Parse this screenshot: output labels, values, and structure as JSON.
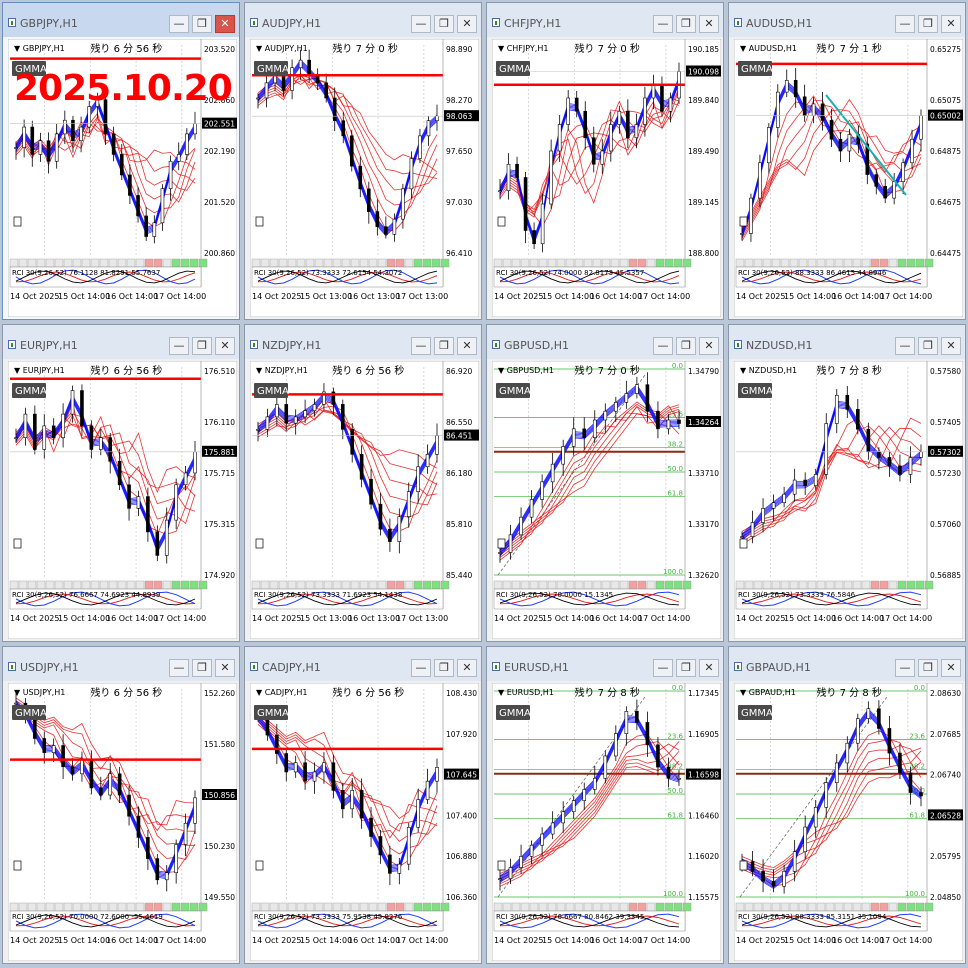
{
  "date_stamp": "2025.10.20",
  "colors": {
    "bull": "#0000ff",
    "red_band": "#e01010",
    "level_line": "#ff0000",
    "price_box": "#000000",
    "osc_blue": "#1f3cff",
    "osc_red": "#e31b1b",
    "fibo": "#3cb43c",
    "fibo_label": "#3cb43c",
    "hline": "#8b2a10",
    "gmma_box": "#4a4a4a",
    "trend_cyan": "#1ab0b0",
    "btn_buy": "#7fe07f",
    "btn_sell": "#7fe07f",
    "btn_red": "#f2a0a0"
  },
  "chart_data": [
    {
      "symbol": "GBPJPY,H1",
      "header": "GBPJPY,H1",
      "countdown": "残り 6 分 56 秒",
      "indicator": "GMMA",
      "yticks": [
        "203.520",
        "202.860",
        "202.190",
        "201.520",
        "200.860"
      ],
      "price": "202.551",
      "xlabels": [
        "14 Oct 2025",
        "15 Oct 14:00",
        "16 Oct 14:00",
        "17 Oct 14:00"
      ],
      "osc_label": "RCI 30(9,26,52) 76.1128 81.8291 55.7637",
      "ylim": [
        200.6,
        203.7
      ],
      "level": 203.5,
      "trend": "down-up",
      "closes": [
        202.2,
        202.5,
        202.1,
        202.3,
        202.0,
        202.4,
        202.6,
        202.3,
        202.5,
        202.8,
        202.9,
        202.4,
        202.1,
        201.8,
        201.5,
        201.2,
        200.9,
        201.1,
        201.6,
        202.0,
        202.1,
        202.4,
        202.55
      ]
    },
    {
      "symbol": "AUDJPY,H1",
      "header": "AUDJPY,H1",
      "countdown": "残り 7 分 0 秒",
      "indicator": "GMMA",
      "yticks": [
        "98.890",
        "98.270",
        "97.650",
        "97.030",
        "96.410"
      ],
      "price": "98.063",
      "xlabels": [
        "14 Oct 2025",
        "15 Oct 13:00",
        "16 Oct 13:00",
        "17 Oct 13:00"
      ],
      "osc_label": "RCI 30(9,26,52) 73.3333 72.6154 54.3072",
      "ylim": [
        96.2,
        99.0
      ],
      "level": 98.6,
      "trend": "down",
      "closes": [
        98.3,
        98.5,
        98.6,
        98.4,
        98.7,
        98.8,
        98.6,
        98.5,
        98.3,
        98.0,
        97.8,
        97.4,
        97.1,
        96.8,
        96.6,
        96.5,
        96.7,
        97.1,
        97.5,
        97.8,
        98.0,
        98.06
      ]
    },
    {
      "symbol": "CHFJPY,H1",
      "header": "CHFJPY,H1",
      "countdown": "残り 7 分 0 秒",
      "indicator": "GMMA",
      "yticks": [
        "190.185",
        "189.840",
        "189.490",
        "189.145",
        "188.800"
      ],
      "price": "190.098",
      "xlabels": [
        "14 Oct 2025",
        "15 Oct 14:00",
        "16 Oct 14:00",
        "17 Oct 14:00"
      ],
      "osc_label": "RCI 30(9,26,52) 74.0000 82.8173 45.5357",
      "ylim": [
        188.7,
        190.3
      ],
      "level": 190.0,
      "trend": "up",
      "closes": [
        189.2,
        189.4,
        189.3,
        188.9,
        188.8,
        189.1,
        189.5,
        189.7,
        189.9,
        189.8,
        189.6,
        189.4,
        189.5,
        189.7,
        189.8,
        189.6,
        189.7,
        189.9,
        190.0,
        189.8,
        189.9,
        190.1
      ]
    },
    {
      "symbol": "AUDUSD,H1",
      "header": "AUDUSD,H1",
      "countdown": "残り 7 分 1 秒",
      "indicator": "GMMA",
      "yticks": [
        "0.65275",
        "0.65075",
        "0.64875",
        "0.64675",
        "0.64475"
      ],
      "price": "0.65002",
      "xlabels": [
        "14 Oct 2025",
        "15 Oct 14:00",
        "16 Oct 14:00",
        "17 Oct 14:00"
      ],
      "osc_label": "RCI 30(9,26,52) 88.3333 86.4615 44.8946",
      "ylim": [
        0.644,
        0.653
      ],
      "level": 0.6522,
      "trend": "down",
      "closes": [
        0.645,
        0.6465,
        0.648,
        0.6495,
        0.651,
        0.6515,
        0.6508,
        0.65,
        0.6505,
        0.6498,
        0.649,
        0.6485,
        0.6492,
        0.6488,
        0.6475,
        0.647,
        0.6465,
        0.6472,
        0.648,
        0.649,
        0.65
      ]
    },
    {
      "symbol": "EURJPY,H1",
      "header": "EURJPY,H1",
      "countdown": "残り 6 分 56 秒",
      "indicator": "GMMA",
      "yticks": [
        "176.510",
        "176.110",
        "175.715",
        "175.315",
        "174.920"
      ],
      "price": "175.881",
      "xlabels": [
        "14 Oct 2025",
        "15 Oct 14:00",
        "16 Oct 14:00",
        "17 Oct 14:00"
      ],
      "osc_label": "RCI 30(9,26,52) 76.6667 74.6923 44.8939",
      "ylim": [
        174.8,
        176.6
      ],
      "level": 176.5,
      "trend": "down",
      "closes": [
        176.0,
        176.2,
        175.9,
        176.1,
        176.0,
        176.2,
        176.4,
        176.1,
        175.9,
        176.0,
        175.8,
        175.6,
        175.4,
        175.5,
        175.2,
        175.0,
        175.3,
        175.6,
        175.7,
        175.88
      ]
    },
    {
      "symbol": "NZDJPY,H1",
      "header": "NZDJPY,H1",
      "countdown": "残り 6 分 56 秒",
      "indicator": "GMMA",
      "yticks": [
        "86.920",
        "86.550",
        "86.180",
        "85.810",
        "85.440"
      ],
      "price": "86.451",
      "xlabels": [
        "14 Oct 2025",
        "15 Oct 13:00",
        "16 Oct 13:00",
        "17 Oct 13:00"
      ],
      "osc_label": "RCI 30(9,26,52) 73.3333 71.6923 54.1438",
      "ylim": [
        85.3,
        87.0
      ],
      "level": 86.78,
      "trend": "down",
      "closes": [
        86.5,
        86.6,
        86.7,
        86.55,
        86.6,
        86.65,
        86.7,
        86.8,
        86.7,
        86.5,
        86.3,
        86.1,
        85.9,
        85.7,
        85.6,
        85.8,
        86.0,
        86.2,
        86.3,
        86.45
      ]
    },
    {
      "symbol": "GBPUSD,H1",
      "header": "GBPUSD,H1",
      "countdown": "残り 7 分 0 秒",
      "indicator": "GMMA",
      "yticks": [
        "1.34790",
        "1.34264",
        "1.33710",
        "1.33170",
        "1.32620"
      ],
      "price": "1.34264",
      "xlabels": [
        "14 Oct 2025",
        "15 Oct 14:00",
        "16 Oct 14:00",
        "17 Oct 14:00"
      ],
      "osc_label": "RCI 30(9,26,52) 70.0000 15.1345",
      "ylim": [
        1.325,
        1.349
      ],
      "level": null,
      "trend": "up",
      "fib": [
        "0.0",
        "23.6",
        "38.2",
        "50.0",
        "61.8",
        "100.0"
      ],
      "closes": [
        1.328,
        1.33,
        1.332,
        1.334,
        1.336,
        1.338,
        1.34,
        1.342,
        1.341,
        1.343,
        1.344,
        1.345,
        1.346,
        1.347,
        1.344,
        1.342,
        1.343,
        1.3426
      ]
    },
    {
      "symbol": "NZDUSD,H1",
      "header": "NZDUSD,H1",
      "countdown": "残り 7 分 8 秒",
      "indicator": "GMMA",
      "yticks": [
        "0.57580",
        "0.57405",
        "0.57230",
        "0.57060",
        "0.56885"
      ],
      "price": "0.57302",
      "xlabels": [
        "14 Oct 2025",
        "15 Oct 14:00",
        "16 Oct 14:00",
        "17 Oct 14:00"
      ],
      "osc_label": "RCI 30(9,26,52) 73.3333 76.5846",
      "ylim": [
        0.5685,
        0.576
      ],
      "level": null,
      "trend": "flat",
      "closes": [
        0.57,
        0.5705,
        0.571,
        0.5712,
        0.5715,
        0.572,
        0.5718,
        0.5722,
        0.574,
        0.575,
        0.5745,
        0.5738,
        0.573,
        0.5728,
        0.5725,
        0.5722,
        0.5728,
        0.573
      ]
    },
    {
      "symbol": "USDJPY,H1",
      "header": "USDJPY,H1",
      "countdown": "残り 6 分 56 秒",
      "indicator": "GMMA",
      "yticks": [
        "152.260",
        "151.580",
        "150.856",
        "150.230",
        "149.550"
      ],
      "price": "150.856",
      "xlabels": [
        "14 Oct 2025",
        "15 Oct 14:00",
        "16 Oct 14:00",
        "17 Oct 14:00"
      ],
      "osc_label": "RCI 30(9,26,52) 70.0000 72.6000 -55.4619",
      "ylim": [
        149.4,
        152.4
      ],
      "level": 151.4,
      "trend": "down",
      "closes": [
        152.2,
        152.0,
        151.7,
        151.5,
        151.6,
        151.3,
        151.2,
        151.4,
        151.0,
        150.9,
        151.2,
        150.9,
        150.6,
        150.3,
        150.0,
        149.7,
        149.8,
        150.2,
        150.5,
        150.86
      ]
    },
    {
      "symbol": "CADJPY,H1",
      "header": "CADJPY,H1",
      "countdown": "残り 6 分 56 秒",
      "indicator": "GMMA",
      "yticks": [
        "108.430",
        "107.920",
        "107.645",
        "107.400",
        "106.880",
        "106.360"
      ],
      "price": "107.645",
      "xlabels": [
        "14 Oct 2025",
        "15 Oct 14:00",
        "16 Oct 14:00",
        "17 Oct 14:00"
      ],
      "osc_label": "RCI 30(9,26,52) 73.3333 75.9538 45.9276",
      "ylim": [
        106.2,
        108.5
      ],
      "level": 107.85,
      "trend": "down",
      "closes": [
        108.2,
        108.0,
        107.8,
        107.6,
        107.7,
        107.5,
        107.6,
        107.7,
        107.4,
        107.2,
        107.4,
        107.1,
        106.9,
        106.7,
        106.5,
        106.6,
        107.0,
        107.3,
        107.5,
        107.65
      ]
    },
    {
      "symbol": "EURUSD,H1",
      "header": "EURUSD,H1",
      "countdown": "残り 7 分 8 秒",
      "indicator": "GMMA",
      "yticks": [
        "1.17345",
        "1.16905",
        "1.16598",
        "1.16460",
        "1.16020",
        "1.15575"
      ],
      "price": "1.16598",
      "xlabels": [
        "14 Oct 2025",
        "15 Oct 14:00",
        "16 Oct 14:00",
        "17 Oct 14:00"
      ],
      "osc_label": "RCI 30(9,26,52) 76.6667 80.8462 39.3345",
      "ylim": [
        1.155,
        1.174
      ],
      "level": null,
      "trend": "up",
      "fib": [
        "0.0",
        "23.6",
        "38.2",
        "50.0",
        "61.8",
        "100.0"
      ],
      "closes": [
        1.157,
        1.158,
        1.159,
        1.16,
        1.161,
        1.162,
        1.163,
        1.164,
        1.165,
        1.166,
        1.168,
        1.17,
        1.172,
        1.171,
        1.169,
        1.167,
        1.166,
        1.166
      ]
    },
    {
      "symbol": "GBPAUD,H1",
      "header": "GBPAUD,H1",
      "countdown": "残り 7 分 8 秒",
      "indicator": "GMMA",
      "yticks": [
        "2.08630",
        "2.07685",
        "2.06740",
        "2.06528",
        "2.05795",
        "2.04850"
      ],
      "price": "2.06528",
      "xlabels": [
        "14 Oct 2025",
        "15 Oct 14:00",
        "16 Oct 14:00",
        "17 Oct 14:00"
      ],
      "osc_label": "RCI 30(9,26,52) 88.3333 85.3151 35.1094",
      "ylim": [
        2.044,
        2.087
      ],
      "level": null,
      "trend": "up",
      "fib": [
        "0.0",
        "23.6",
        "38.2",
        "50.0",
        "61.8",
        "100.0"
      ],
      "closes": [
        2.052,
        2.05,
        2.048,
        2.047,
        2.05,
        2.054,
        2.059,
        2.063,
        2.068,
        2.072,
        2.076,
        2.081,
        2.083,
        2.079,
        2.074,
        2.07,
        2.066,
        2.0653
      ]
    }
  ]
}
